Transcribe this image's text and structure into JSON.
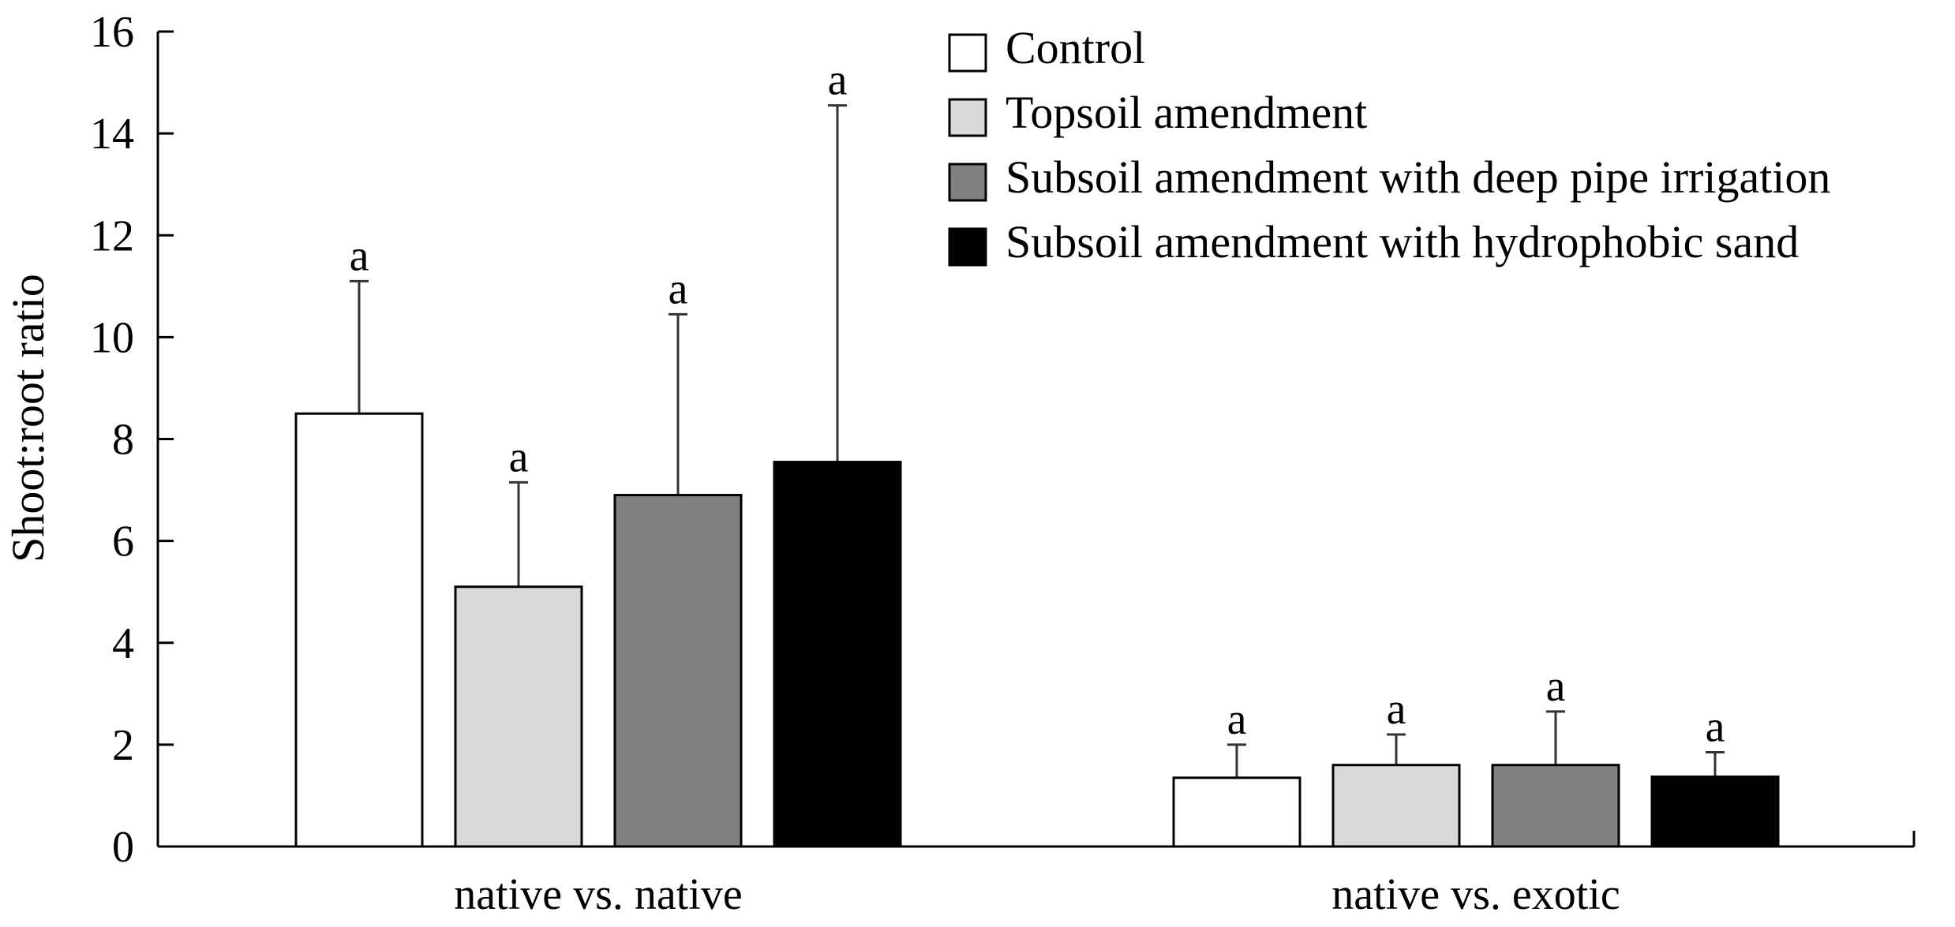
{
  "chart_data": {
    "type": "bar",
    "title": "",
    "xlabel": "",
    "ylabel": "Shoot:root ratio",
    "ylim": [
      0,
      16
    ],
    "yticks": [
      0,
      2,
      4,
      6,
      8,
      10,
      12,
      14,
      16
    ],
    "grid": false,
    "legend_position": "top-right",
    "categories": [
      "native vs. native",
      "native vs. exotic"
    ],
    "series": [
      {
        "name": "Control",
        "color": "#ffffff",
        "values": [
          8.5,
          1.35
        ],
        "error_upper": [
          11.1,
          2.0
        ],
        "significance": [
          "a",
          "a"
        ]
      },
      {
        "name": "Topsoil amendment",
        "color": "#d9d9d9",
        "values": [
          5.1,
          1.6
        ],
        "error_upper": [
          7.15,
          2.2
        ],
        "significance": [
          "a",
          "a"
        ]
      },
      {
        "name": "Subsoil amendment with deep pipe irrigation",
        "color": "#808080",
        "values": [
          6.9,
          1.6
        ],
        "error_upper": [
          10.45,
          2.65
        ],
        "significance": [
          "a",
          "a"
        ]
      },
      {
        "name": "Subsoil amendment with hydrophobic sand",
        "color": "#000000",
        "values": [
          7.55,
          1.37
        ],
        "error_upper": [
          14.55,
          1.85
        ],
        "significance": [
          "a",
          "a"
        ]
      }
    ]
  }
}
